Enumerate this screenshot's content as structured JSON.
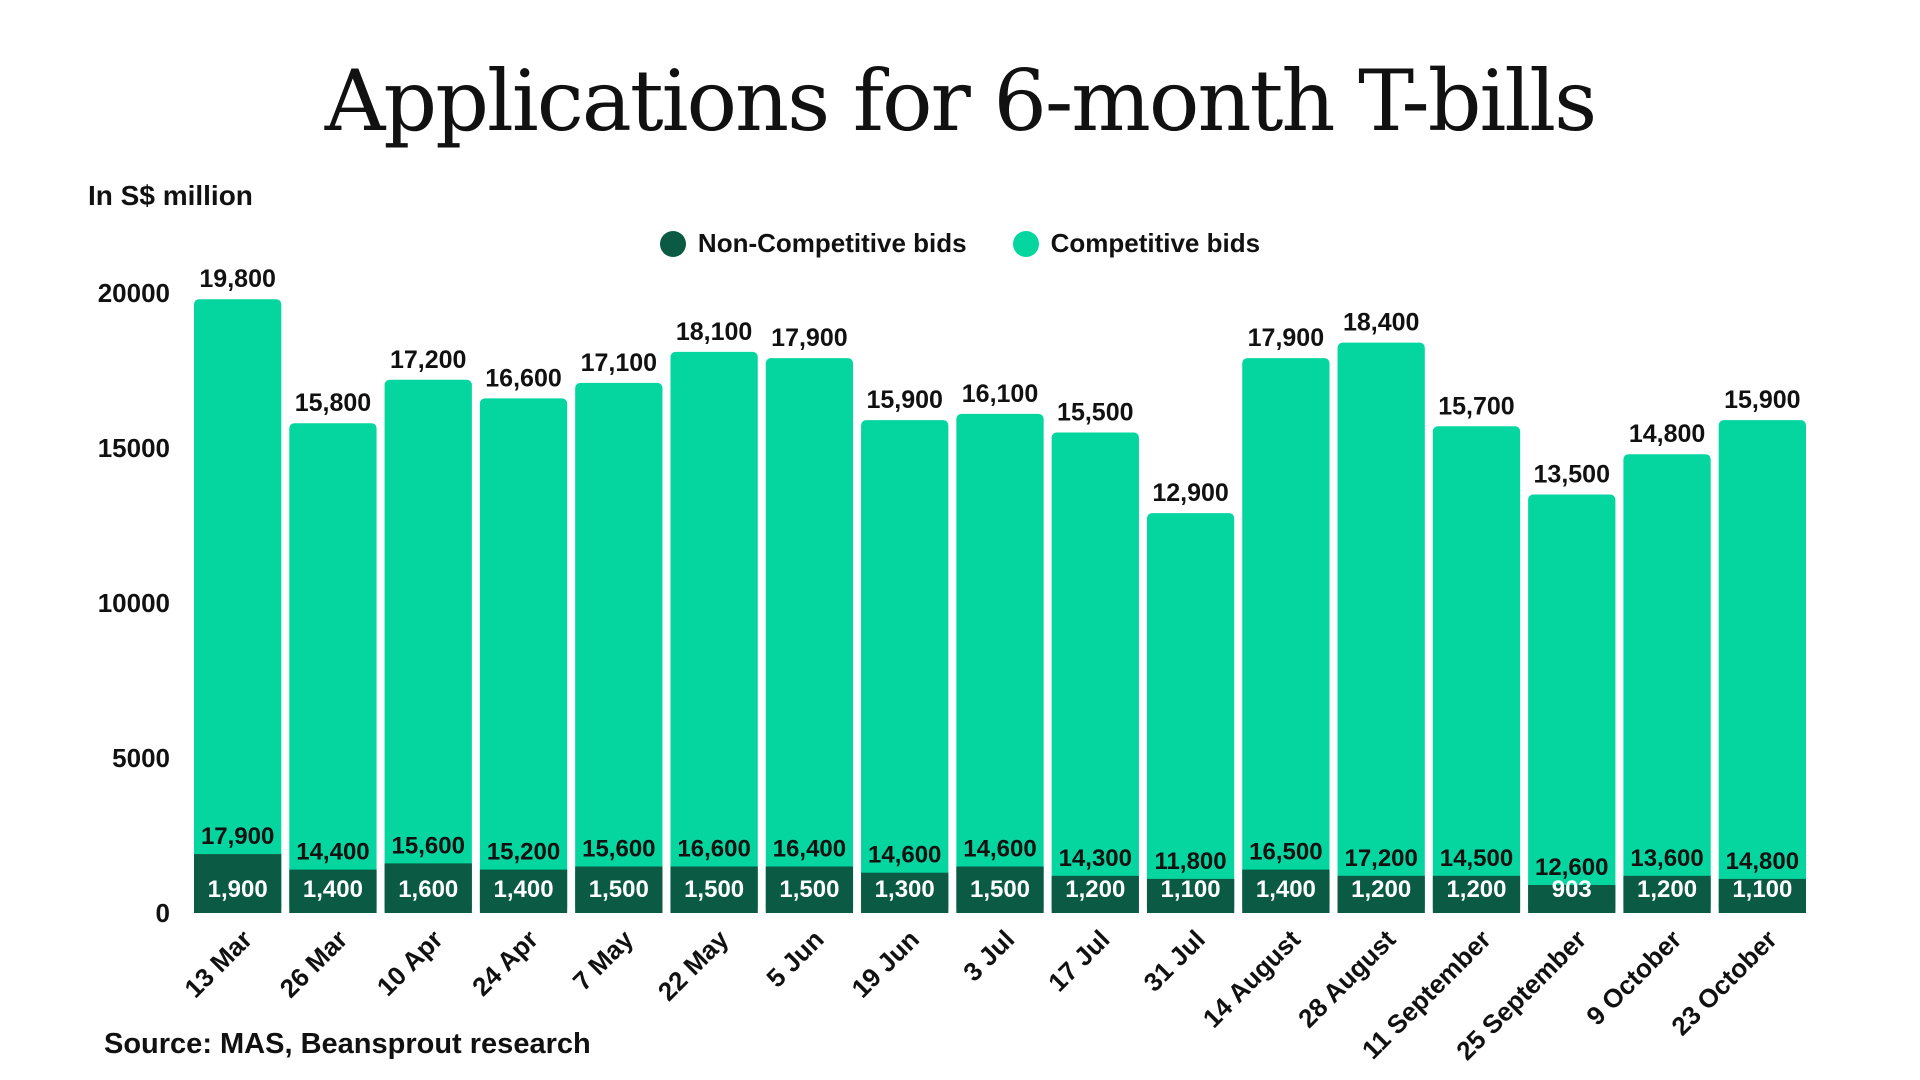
{
  "title": "Applications for 6-month T-bills",
  "unit_label": "In S$ million",
  "source": "Source: MAS, Beansprout research",
  "colors": {
    "non_competitive": "#0b5a43",
    "competitive": "#05d6a0"
  },
  "legend": [
    {
      "label": "Non-Competitive bids",
      "color": "#0b5a43"
    },
    {
      "label": "Competitive bids",
      "color": "#05d6a0"
    }
  ],
  "chart_data": {
    "type": "bar",
    "stacked": true,
    "title": "Applications for 6-month T-bills",
    "ylabel": "In S$ million",
    "ylim": [
      0,
      20000
    ],
    "yticks": [
      "0",
      "5000",
      "10000",
      "15000",
      "20000"
    ],
    "categories": [
      "13 Mar",
      "26 Mar",
      "10 Apr",
      "24 Apr",
      "7 May",
      "22 May",
      "5 Jun",
      "19 Jun",
      "3 Jul",
      "17 Jul",
      "31 Jul",
      "14 August",
      "28 August",
      "11 September",
      "25 September",
      "9 October",
      "23 October"
    ],
    "series": [
      {
        "name": "Non-Competitive bids",
        "values": [
          1900,
          1400,
          1600,
          1400,
          1500,
          1500,
          1500,
          1300,
          1500,
          1200,
          1100,
          1400,
          1200,
          1200,
          903,
          1200,
          1100
        ],
        "labels": [
          "1,900",
          "1,400",
          "1,600",
          "1,400",
          "1,500",
          "1,500",
          "1,500",
          "1,300",
          "1,500",
          "1,200",
          "1,100",
          "1,400",
          "1,200",
          "1,200",
          "903",
          "1,200",
          "1,100"
        ]
      },
      {
        "name": "Competitive bids",
        "values": [
          17900,
          14400,
          15600,
          15200,
          15600,
          16600,
          16400,
          14600,
          14600,
          14300,
          11800,
          16500,
          17200,
          14500,
          12600,
          13600,
          14800
        ],
        "labels": [
          "17,900",
          "14,400",
          "15,600",
          "15,200",
          "15,600",
          "16,600",
          "16,400",
          "14,600",
          "14,600",
          "14,300",
          "11,800",
          "16,500",
          "17,200",
          "14,500",
          "12,600",
          "13,600",
          "14,800"
        ]
      }
    ],
    "totals": [
      19800,
      15800,
      17200,
      16600,
      17100,
      18100,
      17900,
      15900,
      16100,
      15500,
      12900,
      17900,
      18400,
      15700,
      13500,
      14800,
      15900
    ],
    "total_labels": [
      "19,800",
      "15,800",
      "17,200",
      "16,600",
      "17,100",
      "18,100",
      "17,900",
      "15,900",
      "16,100",
      "15,500",
      "12,900",
      "17,900",
      "18,400",
      "15,700",
      "13,500",
      "14,800",
      "15,900"
    ]
  }
}
